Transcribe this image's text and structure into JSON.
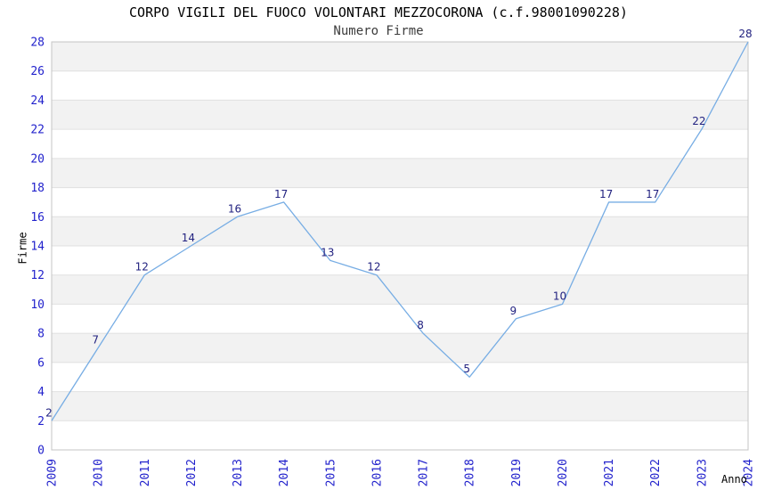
{
  "title": "CORPO VIGILI DEL FUOCO VOLONTARI MEZZOCORONA (c.f.98001090228)",
  "subtitle": "Numero Firme",
  "chart_data": {
    "type": "line",
    "title": "CORPO VIGILI DEL FUOCO VOLONTARI MEZZOCORONA (c.f.98001090228)",
    "subtitle": "Numero Firme",
    "xlabel": "Anno",
    "ylabel": "Firme",
    "x": [
      "2009",
      "2010",
      "2011",
      "2012",
      "2013",
      "2014",
      "2015",
      "2016",
      "2017",
      "2018",
      "2019",
      "2020",
      "2021",
      "2022",
      "2023",
      "2024"
    ],
    "series": [
      {
        "name": "Firme",
        "values": [
          2,
          7,
          12,
          14,
          16,
          17,
          13,
          12,
          8,
          5,
          9,
          10,
          17,
          17,
          22,
          28
        ]
      }
    ],
    "point_labels_shown": true,
    "markers": false,
    "legend": "none",
    "ylim": [
      0,
      28
    ],
    "ytick_step": 2,
    "grid": "horizontal-gridlines-with-alternating-bands",
    "colors": {
      "line": "#77ade4",
      "point_label": "#222280",
      "tick_label": "#2222cc",
      "band_fill": "#f2f2f2",
      "gridline": "#e0e0e0",
      "plot_border": "#c4c4c4",
      "title": "#000000",
      "subtitle": "#3c3c3c",
      "axis_title": "#000000",
      "background": "#ffffff"
    }
  }
}
